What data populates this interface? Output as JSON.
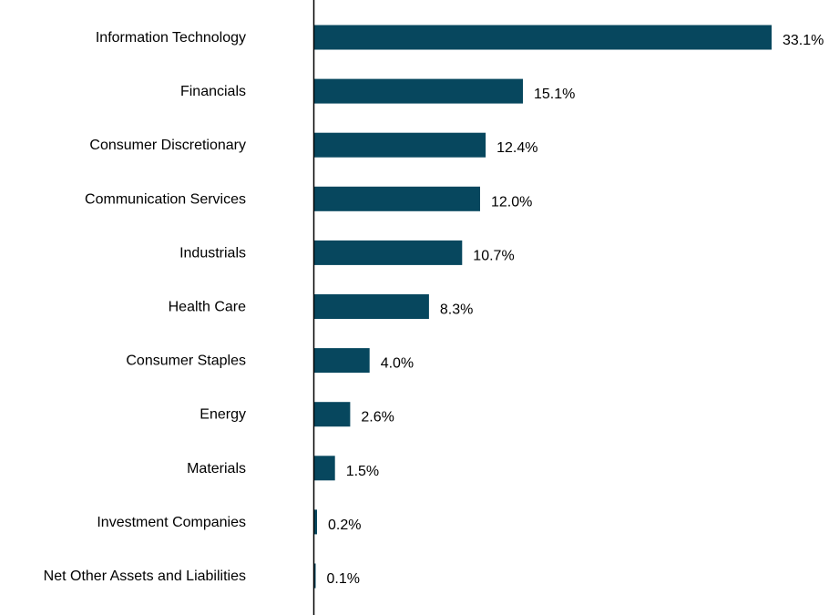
{
  "chart_data": {
    "type": "bar",
    "orientation": "horizontal",
    "title": "",
    "xlabel": "",
    "ylabel": "",
    "grid": false,
    "legend": "none",
    "value_suffix": "%",
    "categories": [
      "Information Technology",
      "Financials",
      "Consumer Discretionary",
      "Communication Services",
      "Industrials",
      "Health Care",
      "Consumer Staples",
      "Energy",
      "Materials",
      "Investment Companies",
      "Net Other Assets and Liabilities"
    ],
    "values": [
      33.1,
      15.1,
      12.4,
      12.0,
      10.7,
      8.3,
      4.0,
      2.6,
      1.5,
      0.2,
      0.1
    ],
    "value_labels": [
      "33.1%",
      "15.1%",
      "12.4%",
      "12.0%",
      "10.7%",
      "8.3%",
      "4.0%",
      "2.6%",
      "1.5%",
      "0.2%",
      "0.1%"
    ],
    "xlim": [
      0,
      33.1
    ],
    "colors": {
      "bar": "#07475e",
      "axis": "#000000",
      "text": "#000000"
    }
  }
}
